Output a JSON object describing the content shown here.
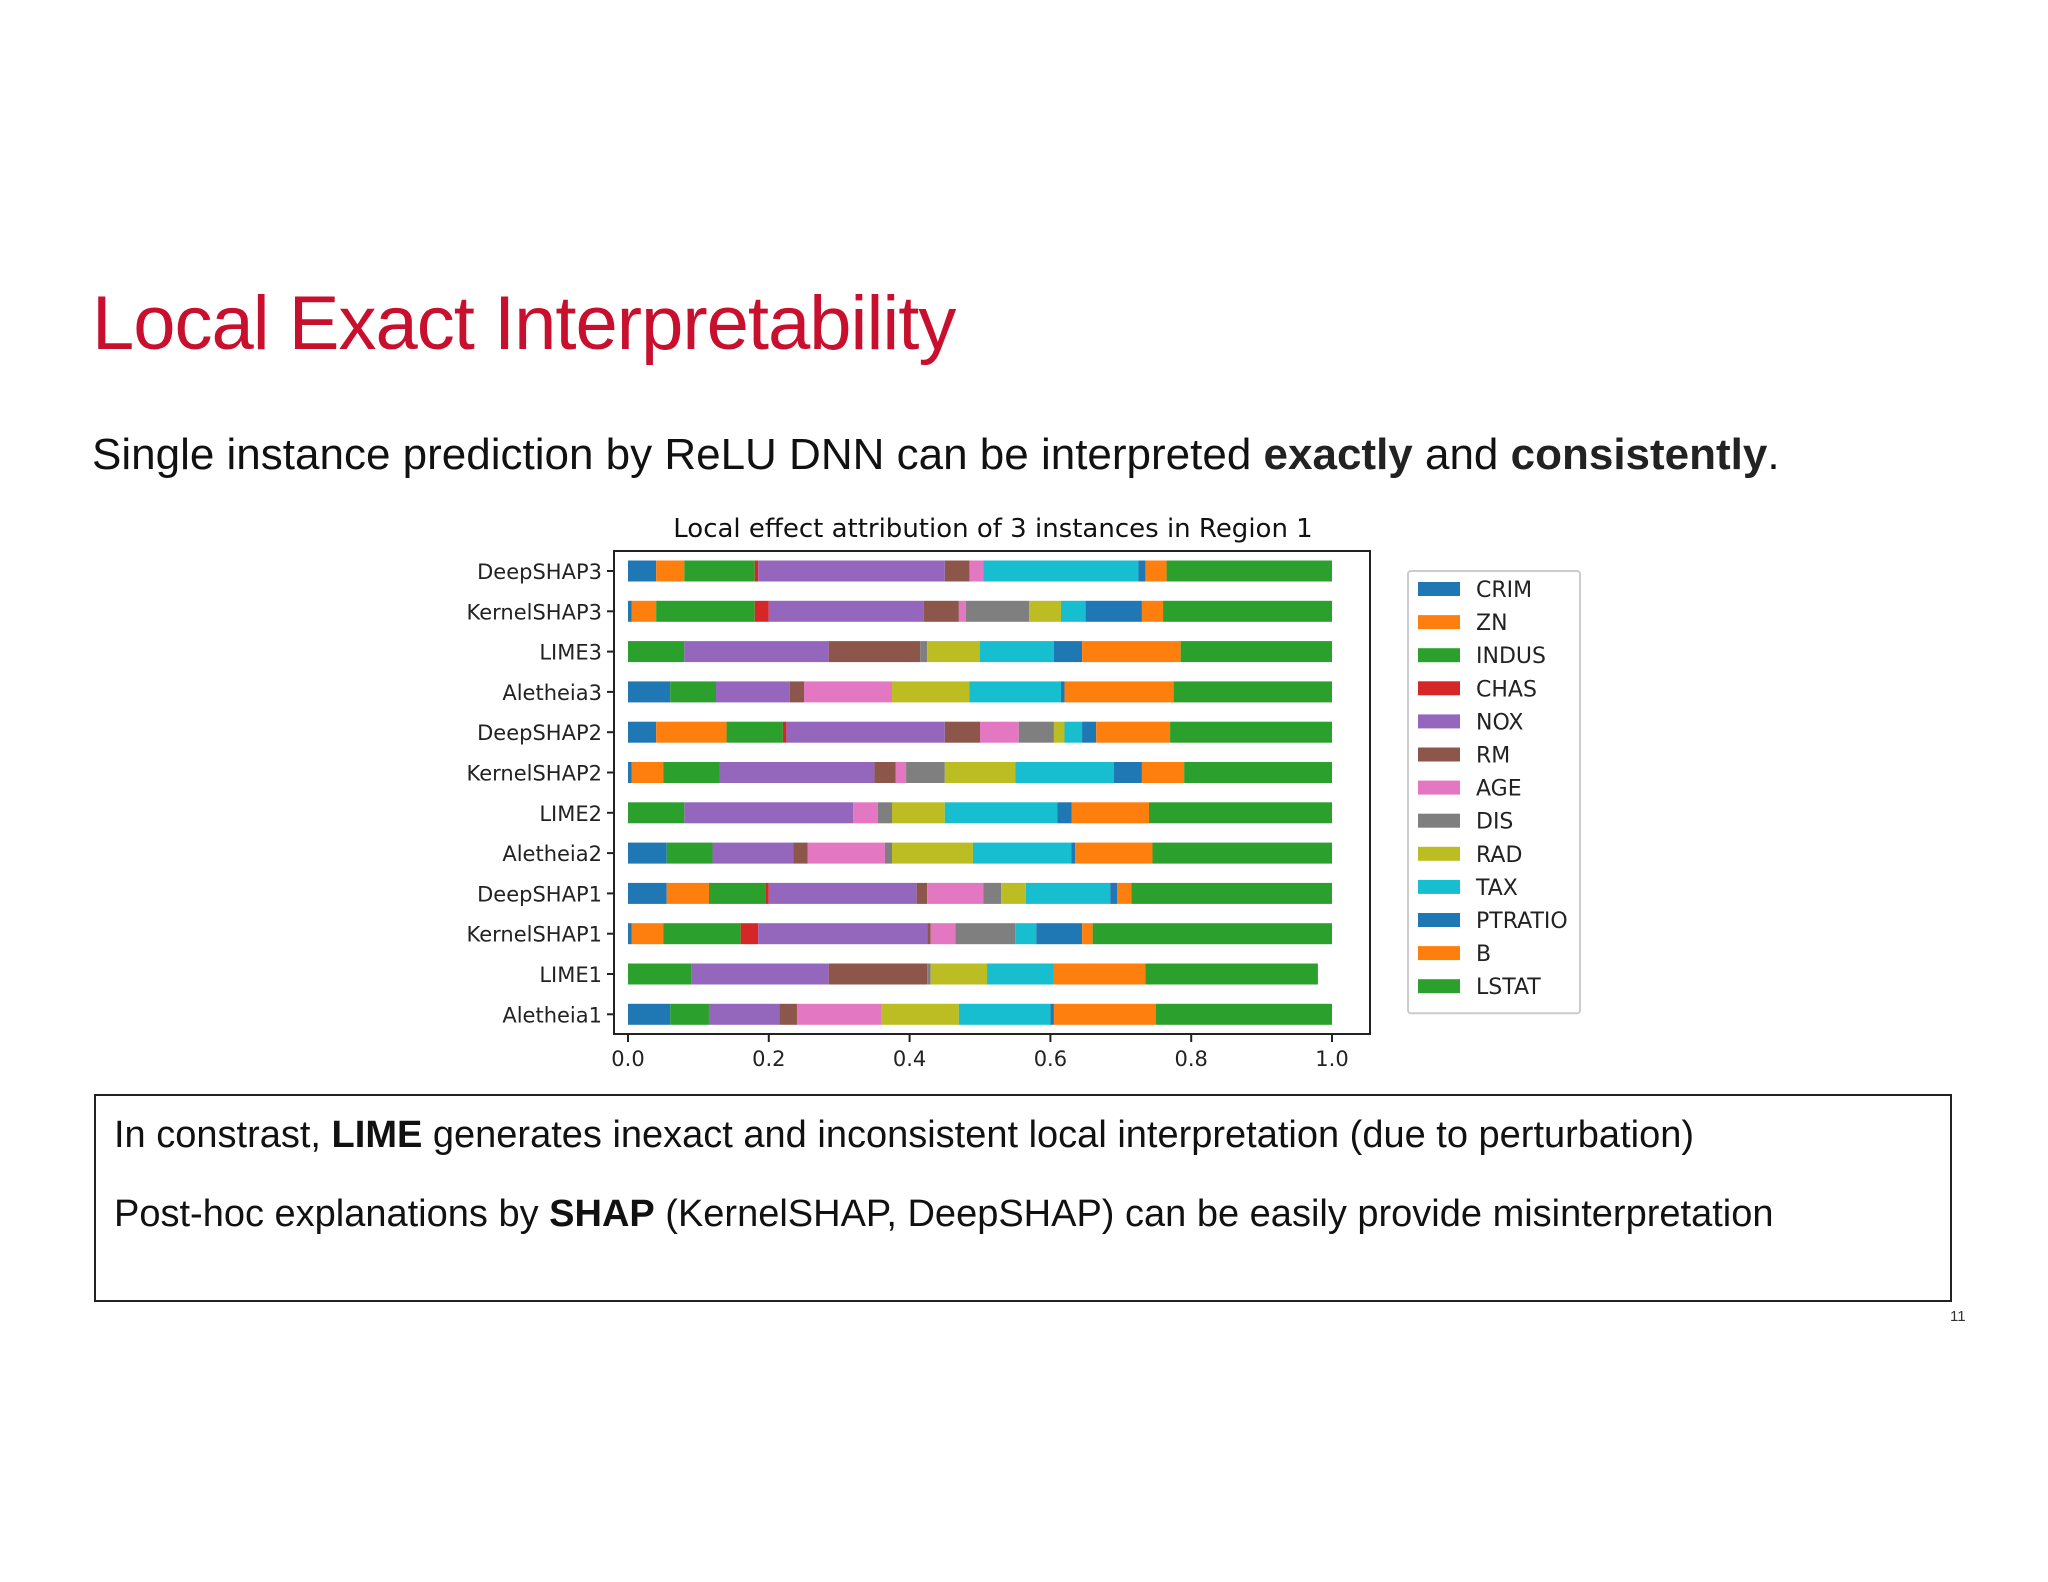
{
  "slide": {
    "title": "Local Exact Interpretability",
    "subtitle": {
      "text_1": "Single instance prediction by ReLU DNN can be interpreted ",
      "bold_1": "exactly",
      "text_2": " and ",
      "bold_2": "consistently",
      "text_3": "."
    },
    "note_box": {
      "line1": {
        "text_1": "In constrast, ",
        "bold": "LIME",
        "text_2": " generates inexact and inconsistent local interpretation (due to perturbation)"
      },
      "line2": {
        "text_1": "Post-hoc explanations by ",
        "bold": "SHAP",
        "text_2": " (KernelSHAP, DeepSHAP) can be easily provide misinterpretation"
      }
    },
    "page_number": "11"
  },
  "chart_data": {
    "type": "bar",
    "orientation": "horizontal",
    "stacked": true,
    "title": "Local effect attribution of 3 instances in Region 1",
    "xlabel": "",
    "ylabel": "",
    "xlim": [
      0,
      1.0
    ],
    "xticks": [
      "0.0",
      "0.2",
      "0.4",
      "0.6",
      "0.8",
      "1.0"
    ],
    "grid": false,
    "legend_position": "outside-right",
    "categories": [
      "DeepSHAP3",
      "KernelSHAP3",
      "LIME3",
      "Aletheia3",
      "DeepSHAP2",
      "KernelSHAP2",
      "LIME2",
      "Aletheia2",
      "DeepSHAP1",
      "KernelSHAP1",
      "LIME1",
      "Aletheia1"
    ],
    "series": [
      {
        "name": "CRIM",
        "color": "#1f77b4",
        "values": [
          0.04,
          0.005,
          0.0,
          0.06,
          0.04,
          0.005,
          0.0,
          0.055,
          0.055,
          0.005,
          0.0,
          0.06
        ]
      },
      {
        "name": "ZN",
        "color": "#ff7f0e",
        "values": [
          0.04,
          0.035,
          0.0,
          0.0,
          0.1,
          0.045,
          0.0,
          0.0,
          0.06,
          0.045,
          0.0,
          0.0
        ]
      },
      {
        "name": "INDUS",
        "color": "#2ca02c",
        "values": [
          0.1,
          0.14,
          0.08,
          0.065,
          0.08,
          0.08,
          0.08,
          0.065,
          0.08,
          0.11,
          0.09,
          0.055
        ]
      },
      {
        "name": "CHAS",
        "color": "#d62728",
        "values": [
          0.005,
          0.02,
          0.0,
          0.0,
          0.005,
          0.0,
          0.0,
          0.0,
          0.005,
          0.025,
          0.0,
          0.0
        ]
      },
      {
        "name": "NOX",
        "color": "#9467bd",
        "values": [
          0.265,
          0.22,
          0.205,
          0.105,
          0.225,
          0.22,
          0.24,
          0.115,
          0.21,
          0.24,
          0.195,
          0.1
        ]
      },
      {
        "name": "RM",
        "color": "#8c564b",
        "values": [
          0.035,
          0.05,
          0.13,
          0.02,
          0.05,
          0.03,
          0.0,
          0.02,
          0.015,
          0.005,
          0.14,
          0.025
        ]
      },
      {
        "name": "AGE",
        "color": "#e377c2",
        "values": [
          0.02,
          0.01,
          0.0,
          0.125,
          0.055,
          0.015,
          0.035,
          0.11,
          0.08,
          0.035,
          0.0,
          0.12
        ]
      },
      {
        "name": "DIS",
        "color": "#7f7f7f",
        "values": [
          0.0,
          0.09,
          0.01,
          0.0,
          0.05,
          0.055,
          0.02,
          0.01,
          0.025,
          0.085,
          0.005,
          0.0
        ]
      },
      {
        "name": "RAD",
        "color": "#bcbd22",
        "values": [
          0.0,
          0.045,
          0.075,
          0.11,
          0.015,
          0.1,
          0.075,
          0.115,
          0.035,
          0.0,
          0.08,
          0.11
        ]
      },
      {
        "name": "TAX",
        "color": "#17becf",
        "values": [
          0.22,
          0.035,
          0.105,
          0.13,
          0.025,
          0.14,
          0.16,
          0.14,
          0.12,
          0.03,
          0.095,
          0.13
        ]
      },
      {
        "name": "PTRATIO",
        "color": "#1f77b4",
        "values": [
          0.01,
          0.08,
          0.04,
          0.005,
          0.02,
          0.04,
          0.02,
          0.005,
          0.01,
          0.065,
          0.0,
          0.005
        ]
      },
      {
        "name": "B",
        "color": "#ff7f0e",
        "values": [
          0.03,
          0.03,
          0.14,
          0.155,
          0.105,
          0.06,
          0.11,
          0.11,
          0.02,
          0.015,
          0.13,
          0.145
        ]
      },
      {
        "name": "LSTAT",
        "color": "#2ca02c",
        "values": [
          0.235,
          0.24,
          0.215,
          0.225,
          0.23,
          0.21,
          0.26,
          0.255,
          0.285,
          0.34,
          0.245,
          0.25
        ]
      }
    ]
  }
}
